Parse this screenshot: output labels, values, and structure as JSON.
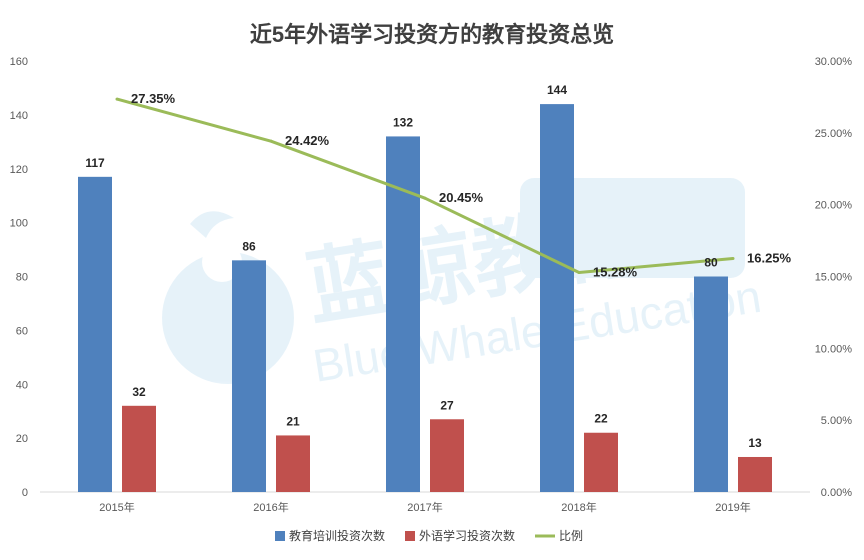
{
  "chart_data": {
    "type": "bar",
    "title": "近5年外语学习投资方的教育投资总览",
    "categories": [
      "2015年",
      "2016年",
      "2017年",
      "2018年",
      "2019年"
    ],
    "y_left_ticks": [
      "0",
      "20",
      "40",
      "60",
      "80",
      "100",
      "120",
      "140",
      "160"
    ],
    "y_right_ticks": [
      "0.00%",
      "5.00%",
      "10.00%",
      "15.00%",
      "20.00%",
      "25.00%",
      "30.00%"
    ],
    "ylim_left": [
      0,
      160
    ],
    "ylim_right": [
      0,
      30
    ],
    "series": [
      {
        "name": "教育培训投资次数",
        "type": "bar",
        "axis": "left",
        "color": "#4f81bd",
        "values": [
          117,
          86,
          132,
          144,
          80
        ],
        "labels": [
          "117",
          "86",
          "132",
          "144",
          "80"
        ]
      },
      {
        "name": "外语学习投资次数",
        "type": "bar",
        "axis": "left",
        "color": "#c0504d",
        "values": [
          32,
          21,
          27,
          22,
          13
        ],
        "labels": [
          "32",
          "21",
          "27",
          "22",
          "13"
        ]
      },
      {
        "name": "比例",
        "type": "line",
        "axis": "right",
        "color": "#9bbb59",
        "values": [
          27.35,
          24.42,
          20.45,
          15.28,
          16.25
        ],
        "labels": [
          "27.35%",
          "24.42%",
          "20.45%",
          "15.28%",
          "16.25%"
        ]
      }
    ],
    "legend_position": "bottom",
    "grid": false
  },
  "watermark": {
    "cn": "蓝鲸教育",
    "en": "Blue Whale Education"
  }
}
